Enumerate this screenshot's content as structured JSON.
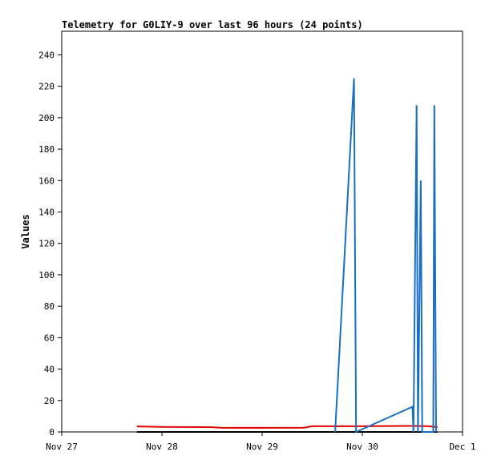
{
  "chart_data": {
    "type": "line",
    "title": "Telemetry for G0LIY-9 over last 96 hours (24 points)",
    "xlabel": "",
    "ylabel": "Values",
    "x_range": [
      "2023-11-27T00:00",
      "2023-12-01T00:00"
    ],
    "ylim": [
      0,
      255
    ],
    "x_ticks": [
      {
        "t": "2023-11-27T00:00",
        "label": "Nov 27"
      },
      {
        "t": "2023-11-28T00:00",
        "label": "Nov 28"
      },
      {
        "t": "2023-11-29T00:00",
        "label": "Nov 29"
      },
      {
        "t": "2023-11-30T00:00",
        "label": "Nov 30"
      },
      {
        "t": "2023-12-01T00:00",
        "label": "Dec 1"
      }
    ],
    "y_ticks": [
      0,
      20,
      40,
      60,
      80,
      100,
      120,
      140,
      160,
      180,
      200,
      220,
      240
    ],
    "grid": false,
    "series": [
      {
        "color": "#000000",
        "points": [
          [
            "2023-11-27T18:00",
            0
          ],
          [
            "2023-11-28T00:00",
            0
          ],
          [
            "2023-11-28T12:00",
            0
          ],
          [
            "2023-11-29T12:00",
            0
          ],
          [
            "2023-11-30T12:00",
            0
          ],
          [
            "2023-11-30T18:00",
            0
          ]
        ]
      },
      {
        "color": "#e00000",
        "points": [
          [
            "2023-11-27T18:00",
            3.5
          ],
          [
            "2023-11-28T00:00",
            3.2
          ],
          [
            "2023-11-28T12:00",
            3.0
          ],
          [
            "2023-11-28T14:30",
            2.6
          ],
          [
            "2023-11-29T00:00",
            2.6
          ],
          [
            "2023-11-29T10:00",
            2.7
          ],
          [
            "2023-11-29T12:00",
            3.6
          ],
          [
            "2023-11-30T00:00",
            3.6
          ],
          [
            "2023-11-30T12:00",
            3.8
          ],
          [
            "2023-11-30T16:00",
            3.6
          ],
          [
            "2023-11-30T18:00",
            3.0
          ]
        ]
      },
      {
        "color": "#1a6fc4",
        "points": [
          [
            "2023-11-29T17:30",
            0
          ],
          [
            "2023-11-29T22:00",
            225
          ],
          [
            "2023-11-29T22:30",
            0
          ],
          [
            "2023-11-30T12:00",
            16
          ],
          [
            "2023-11-30T12:15",
            0
          ],
          [
            "2023-11-30T13:00",
            208
          ],
          [
            "2023-11-30T13:20",
            0
          ],
          [
            "2023-11-30T14:00",
            160
          ],
          [
            "2023-11-30T14:20",
            0
          ],
          [
            "2023-11-30T17:00",
            0
          ],
          [
            "2023-11-30T17:15",
            208
          ],
          [
            "2023-11-30T17:40",
            0
          ]
        ]
      }
    ]
  }
}
